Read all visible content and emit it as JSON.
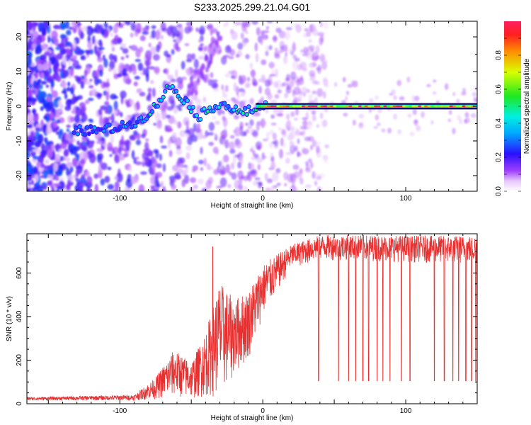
{
  "chart_data": [
    {
      "type": "heatmap",
      "title": "S233.2025.299.21.04.G01",
      "xlabel": "Height of straight line (km)",
      "ylabel": "Frequency (Hz)",
      "xlim": [
        -165,
        150
      ],
      "ylim": [
        -24.5,
        24.5
      ],
      "x_ticks": [
        "-100",
        "0",
        "100"
      ],
      "y_ticks": [
        "-20",
        "-10",
        "0",
        "10",
        "20"
      ],
      "colorbar": {
        "label": "Normalized spectral amplitude",
        "range": [
          0.0,
          1.0
        ],
        "ticks": [
          "0.0",
          "0.2",
          "0.4",
          "0.6",
          "0.8"
        ]
      },
      "ridge": [
        {
          "x": -130,
          "y": -7
        },
        {
          "x": -115,
          "y": -7
        },
        {
          "x": -100,
          "y": -6
        },
        {
          "x": -85,
          "y": -4
        },
        {
          "x": -75,
          "y": 0
        },
        {
          "x": -65,
          "y": 6
        },
        {
          "x": -55,
          "y": 2
        },
        {
          "x": -45,
          "y": -3
        },
        {
          "x": -30,
          "y": 1
        },
        {
          "x": -15,
          "y": -2
        },
        {
          "x": 0,
          "y": 0
        },
        {
          "x": 150,
          "y": 0
        }
      ]
    },
    {
      "type": "line",
      "xlabel": "Height of straight line (km)",
      "ylabel": "SNR (10 * v/v)",
      "xlim": [
        -165,
        150
      ],
      "ylim": [
        0,
        780
      ],
      "x_ticks": [
        "-100",
        "0",
        "100"
      ],
      "y_ticks": [
        "0",
        "200",
        "400",
        "600"
      ],
      "series": [
        {
          "name": "SNR",
          "color": "#e83030",
          "envelope": [
            {
              "x": -165,
              "low": 15,
              "high": 30
            },
            {
              "x": -90,
              "low": 15,
              "high": 40
            },
            {
              "x": -75,
              "low": 20,
              "high": 120
            },
            {
              "x": -62,
              "low": 30,
              "high": 250
            },
            {
              "x": -50,
              "low": 20,
              "high": 190
            },
            {
              "x": -40,
              "low": 30,
              "high": 330
            },
            {
              "x": -30,
              "low": 30,
              "high": 560
            },
            {
              "x": -20,
              "low": 120,
              "high": 480
            },
            {
              "x": -10,
              "low": 200,
              "high": 520
            },
            {
              "x": 0,
              "low": 400,
              "high": 640
            },
            {
              "x": 20,
              "low": 620,
              "high": 730
            },
            {
              "x": 40,
              "low": 660,
              "high": 775
            },
            {
              "x": 150,
              "low": 640,
              "high": 770
            }
          ],
          "spike_x": [
            -35
          ],
          "spike_value": 720,
          "dropouts_x": [
            39,
            53,
            60,
            65,
            70,
            74,
            80,
            84,
            89,
            97,
            103,
            120,
            127,
            133,
            137,
            142,
            146,
            149
          ],
          "dropout_value": 105
        }
      ]
    }
  ]
}
